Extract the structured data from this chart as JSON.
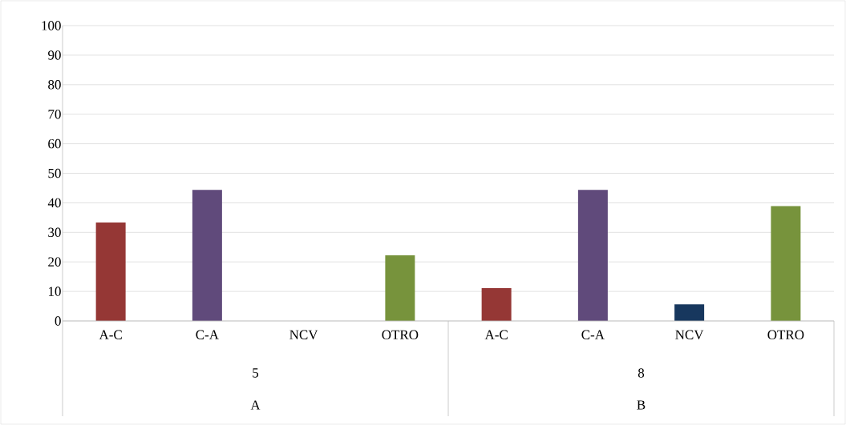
{
  "chart_data": {
    "type": "bar",
    "categories": [
      "A-C",
      "C-A",
      "NCV",
      "OTRO",
      "A-C",
      "C-A",
      "NCV",
      "OTRO"
    ],
    "values": [
      33.3,
      44.4,
      0,
      22.2,
      11.1,
      44.4,
      5.6,
      38.9
    ],
    "colors": [
      "#953735",
      "#604a7b",
      "#17375e",
      "#77933c",
      "#953735",
      "#604a7b",
      "#17375e",
      "#77933c"
    ],
    "annotations": [
      "5",
      "8",
      "A",
      "B"
    ],
    "ylim": [
      0,
      100
    ],
    "yticks": [
      0,
      10,
      20,
      30,
      40,
      50,
      60,
      70,
      80,
      90,
      100
    ],
    "grid": "y"
  }
}
